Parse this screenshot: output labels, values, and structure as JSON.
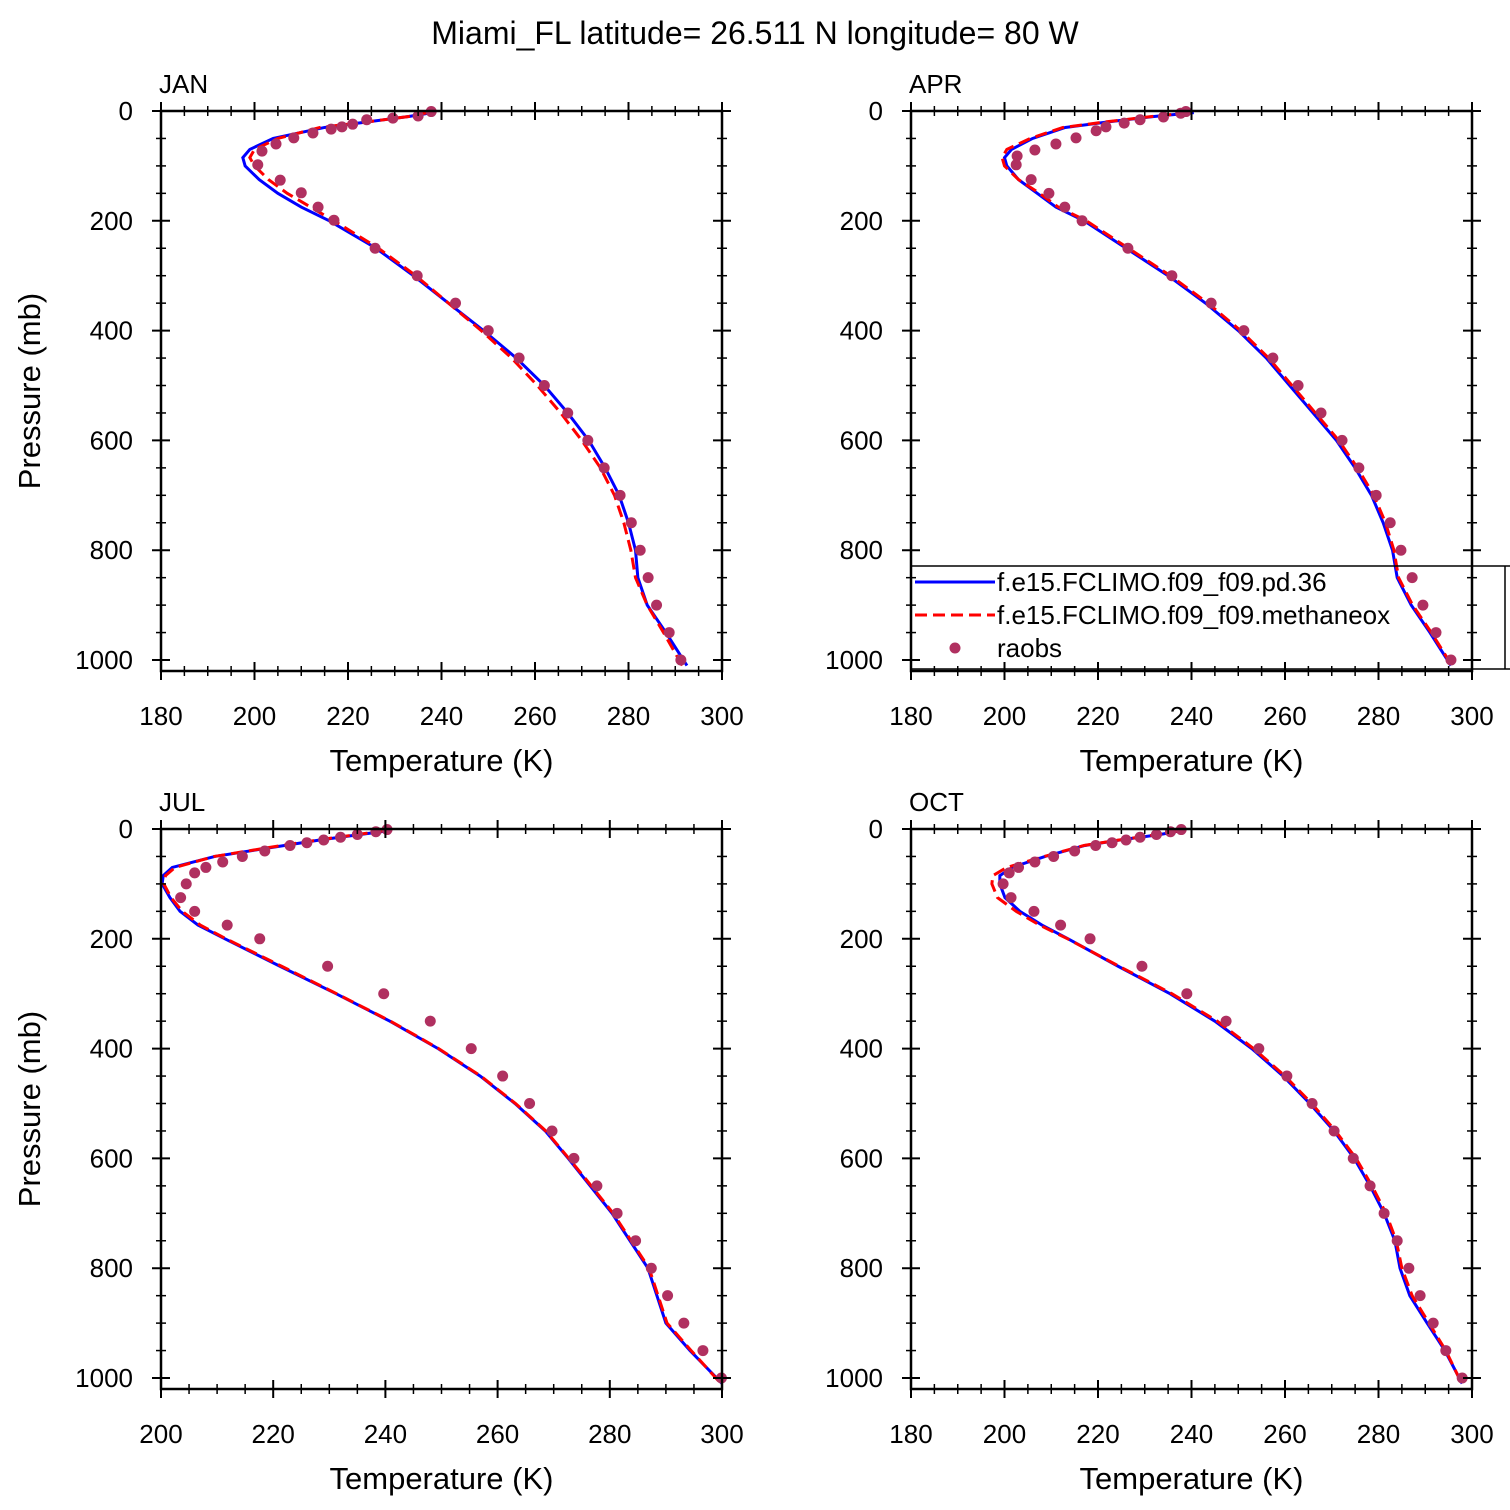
{
  "title": "Miami_FL  latitude= 26.511 N longitude= 80 W",
  "chart_data": [
    {
      "type": "profile",
      "label": "JAN",
      "xlabel": "Temperature (K)",
      "ylabel": "Pressure (mb)",
      "xlim": [
        180,
        300
      ],
      "xticks": [
        180,
        200,
        220,
        240,
        260,
        280,
        300
      ],
      "xminor": 4,
      "ylim": [
        0,
        1020
      ],
      "yticks": [
        0,
        200,
        400,
        600,
        800,
        1000
      ],
      "yminor": 4,
      "y_reversed": true,
      "series": [
        {
          "color": "#0000ff",
          "style": "solid",
          "x": [
            238,
            233,
            224,
            215,
            204,
            199,
            197.5,
            198,
            201,
            205,
            210,
            216,
            226,
            234,
            241.5,
            249,
            256,
            262,
            267,
            271.5,
            275,
            278,
            280,
            281.5,
            282,
            284,
            288,
            292.5
          ],
          "y": [
            3,
            10,
            20,
            30,
            50,
            70,
            85,
            100,
            125,
            150,
            175,
            200,
            250,
            300,
            350,
            400,
            450,
            500,
            550,
            600,
            650,
            700,
            750,
            800,
            850,
            900,
            950,
            1010
          ]
        },
        {
          "color": "#ff0000",
          "style": "dashed",
          "x": [
            237,
            233,
            224,
            214,
            205,
            200,
            199,
            200,
            203,
            207,
            212,
            217,
            226.5,
            234.5,
            241.5,
            248.5,
            255,
            260.5,
            265.5,
            270,
            274,
            277,
            279,
            280.5,
            281.5,
            284,
            287.5,
            291.5
          ],
          "y": [
            3,
            10,
            20,
            30,
            50,
            70,
            85,
            100,
            125,
            150,
            175,
            200,
            250,
            300,
            350,
            400,
            450,
            500,
            550,
            600,
            650,
            700,
            750,
            800,
            850,
            900,
            950,
            1010
          ]
        },
        {
          "color": "#b03060",
          "style": "markers",
          "x": [
            237.8,
            235,
            229.6,
            224,
            221,
            218.7,
            216.4,
            212.5,
            208.4,
            204.6,
            201.6,
            200.7,
            205.5,
            210,
            213.6,
            217,
            225.8,
            234.8,
            243,
            250,
            256.6,
            262,
            267,
            271.3,
            274.8,
            278.2,
            280.6,
            282.5,
            284.2,
            286,
            288.7,
            291.2
          ],
          "y": [
            1,
            9,
            13,
            16,
            24,
            29,
            33,
            40,
            49,
            60,
            73,
            98,
            126,
            149,
            175,
            199,
            250,
            300,
            350,
            400,
            450,
            500,
            550,
            600,
            650,
            700,
            750,
            800,
            850,
            900,
            950,
            1000
          ]
        }
      ]
    },
    {
      "type": "profile",
      "label": "APR",
      "xlabel": "Temperature (K)",
      "legend": "lower-left",
      "xlim": [
        180,
        300
      ],
      "xticks": [
        180,
        200,
        220,
        240,
        260,
        280,
        300
      ],
      "xminor": 4,
      "ylim": [
        0,
        1020
      ],
      "yticks": [
        0,
        200,
        400,
        600,
        800,
        1000
      ],
      "yminor": 4,
      "y_reversed": true,
      "series": [
        {
          "name": "f.e15.FCLIMO.f09_f09.pd.36",
          "color": "#0000ff",
          "style": "solid",
          "x": [
            240.5,
            232,
            222,
            213,
            206,
            201.5,
            200,
            200.5,
            203,
            207,
            211,
            217,
            226,
            235,
            243,
            250,
            256,
            261,
            266,
            271,
            275,
            278.5,
            281,
            283,
            284,
            287,
            291,
            295.5
          ],
          "y": [
            3,
            10,
            20,
            30,
            50,
            70,
            85,
            100,
            125,
            150,
            175,
            200,
            250,
            300,
            350,
            400,
            450,
            500,
            550,
            600,
            650,
            700,
            750,
            800,
            850,
            900,
            950,
            1010
          ]
        },
        {
          "name": "f.e15.FCLIMO.f09_f09.methaneox",
          "color": "#ff0000",
          "style": "dashed",
          "x": [
            239.5,
            231.5,
            221.5,
            212.5,
            205.5,
            200.5,
            199.5,
            200,
            203,
            207.5,
            211.5,
            217.5,
            226.5,
            235.5,
            243.5,
            250.5,
            256.5,
            261.5,
            266.5,
            271.5,
            275.5,
            279,
            281.5,
            283.3,
            284.3,
            287.3,
            291.3,
            295.7
          ],
          "y": [
            3,
            10,
            20,
            30,
            50,
            70,
            85,
            100,
            125,
            150,
            175,
            200,
            250,
            300,
            350,
            400,
            450,
            500,
            550,
            600,
            650,
            700,
            750,
            800,
            850,
            900,
            950,
            1010
          ]
        },
        {
          "name": "raobs",
          "color": "#b03060",
          "style": "markers",
          "x": [
            238.8,
            237.7,
            234,
            229,
            225.6,
            221.7,
            219.6,
            215.3,
            211,
            206.5,
            202.7,
            202.5,
            205.7,
            209.5,
            212.9,
            216.6,
            226.4,
            235.8,
            244.2,
            251.2,
            257.4,
            262.8,
            267.7,
            272.2,
            275.8,
            279.5,
            282.5,
            284.8,
            287.2,
            289.5,
            292.3,
            295.5
          ],
          "y": [
            1,
            4,
            11,
            16,
            22,
            29,
            36,
            49,
            60,
            71,
            82,
            98,
            125,
            150,
            175,
            200,
            250,
            300,
            350,
            400,
            450,
            500,
            550,
            600,
            650,
            700,
            750,
            800,
            850,
            900,
            950,
            1000
          ]
        }
      ]
    },
    {
      "type": "profile",
      "label": "JUL",
      "xlabel": "Temperature (K)",
      "ylabel": "Pressure (mb)",
      "xlim": [
        200,
        300
      ],
      "xticks": [
        200,
        220,
        240,
        260,
        280,
        300
      ],
      "xminor": 4,
      "ylim": [
        0,
        1020
      ],
      "yticks": [
        0,
        200,
        400,
        600,
        800,
        1000
      ],
      "yminor": 4,
      "y_reversed": true,
      "series": [
        {
          "color": "#0000ff",
          "style": "solid",
          "x": [
            240.8,
            235.5,
            228.3,
            222,
            209.6,
            202,
            200.4,
            200.2,
            201.6,
            203.4,
            206.6,
            211.4,
            221.2,
            231.2,
            240.8,
            249.4,
            256.9,
            263.1,
            268.5,
            272.6,
            276.5,
            280.4,
            283.6,
            286.8,
            288.4,
            290,
            294.3,
            300
          ],
          "y": [
            3,
            10,
            20,
            30,
            50,
            70,
            85,
            100,
            125,
            150,
            175,
            200,
            250,
            300,
            350,
            400,
            450,
            500,
            550,
            600,
            650,
            700,
            750,
            800,
            850,
            900,
            950,
            1010
          ]
        },
        {
          "color": "#ff0000",
          "style": "dashed",
          "x": [
            240,
            235,
            228,
            221.5,
            209.5,
            202.5,
            200.8,
            200.5,
            201.8,
            203.8,
            207,
            211.6,
            221.5,
            231.3,
            240.9,
            249.5,
            257,
            263.2,
            268.6,
            272.7,
            276.7,
            280.6,
            283.8,
            287,
            288.6,
            290.2,
            294.5,
            299.8
          ],
          "y": [
            3,
            10,
            20,
            30,
            50,
            70,
            85,
            100,
            125,
            150,
            175,
            200,
            250,
            300,
            350,
            400,
            450,
            500,
            550,
            600,
            650,
            700,
            750,
            800,
            850,
            900,
            950,
            1010
          ]
        },
        {
          "color": "#b03060",
          "style": "markers",
          "x": [
            240.3,
            238.3,
            235,
            232,
            229,
            226,
            223,
            218.5,
            214.5,
            211,
            208,
            206,
            204.5,
            203.5,
            206,
            211.8,
            217.6,
            229.7,
            239.7,
            248,
            255.3,
            260.9,
            265.7,
            269.7,
            273.6,
            277.7,
            281.3,
            284.6,
            287.4,
            290.3,
            293.2,
            296.6,
            299.9
          ],
          "y": [
            1,
            5,
            10,
            15,
            20,
            25,
            30,
            40,
            50,
            60,
            70,
            80,
            100,
            125,
            150,
            175,
            200,
            250,
            300,
            350,
            400,
            450,
            500,
            550,
            600,
            650,
            700,
            750,
            800,
            850,
            900,
            950,
            1000
          ]
        }
      ]
    },
    {
      "type": "profile",
      "label": "OCT",
      "xlabel": "Temperature (K)",
      "xlim": [
        180,
        300
      ],
      "xticks": [
        180,
        200,
        220,
        240,
        260,
        280,
        300
      ],
      "xminor": 4,
      "ylim": [
        0,
        1020
      ],
      "yticks": [
        0,
        200,
        400,
        600,
        800,
        1000
      ],
      "yminor": 4,
      "y_reversed": true,
      "series": [
        {
          "color": "#0000ff",
          "style": "solid",
          "x": [
            237.8,
            233.3,
            224.7,
            217.2,
            208.7,
            201.6,
            199,
            199,
            200.1,
            203.3,
            208,
            213.6,
            224.3,
            235.4,
            245,
            252.9,
            259.6,
            265.3,
            270.5,
            274.8,
            278.2,
            281.2,
            283.5,
            284.6,
            286.7,
            290.4,
            294.2,
            297.9
          ],
          "y": [
            3,
            10,
            20,
            30,
            50,
            70,
            85,
            100,
            125,
            150,
            175,
            200,
            250,
            300,
            350,
            400,
            450,
            500,
            550,
            600,
            650,
            700,
            750,
            800,
            850,
            900,
            950,
            1010
          ]
        },
        {
          "color": "#ff0000",
          "style": "dashed",
          "x": [
            237.5,
            233,
            224.5,
            217,
            208.5,
            200.5,
            197.5,
            197.3,
            198.5,
            202.5,
            207.5,
            213.5,
            224.5,
            235.8,
            245.5,
            253.3,
            260,
            265.7,
            270.8,
            275.2,
            278.6,
            281.6,
            283.8,
            285,
            287.2,
            290.8,
            294.4,
            297.8
          ],
          "y": [
            3,
            10,
            20,
            30,
            50,
            70,
            85,
            100,
            125,
            150,
            175,
            200,
            250,
            300,
            350,
            400,
            450,
            500,
            550,
            600,
            650,
            700,
            750,
            800,
            850,
            900,
            950,
            1010
          ]
        },
        {
          "color": "#b03060",
          "style": "markers",
          "x": [
            237.8,
            235.5,
            232.5,
            229,
            226,
            223,
            219.5,
            215,
            210.5,
            206.5,
            203,
            201,
            199.7,
            201.4,
            206.3,
            212,
            218.3,
            229.4,
            239,
            247.4,
            254.4,
            260.4,
            265.8,
            270.5,
            274.6,
            278.2,
            281.2,
            284,
            286.5,
            288.9,
            291.7,
            294.4,
            297.9
          ],
          "y": [
            1,
            5,
            10,
            15,
            20,
            25,
            30,
            40,
            50,
            60,
            70,
            80,
            100,
            125,
            150,
            175,
            200,
            250,
            300,
            350,
            400,
            450,
            500,
            550,
            600,
            650,
            700,
            750,
            800,
            850,
            900,
            950,
            1000
          ]
        }
      ]
    }
  ]
}
